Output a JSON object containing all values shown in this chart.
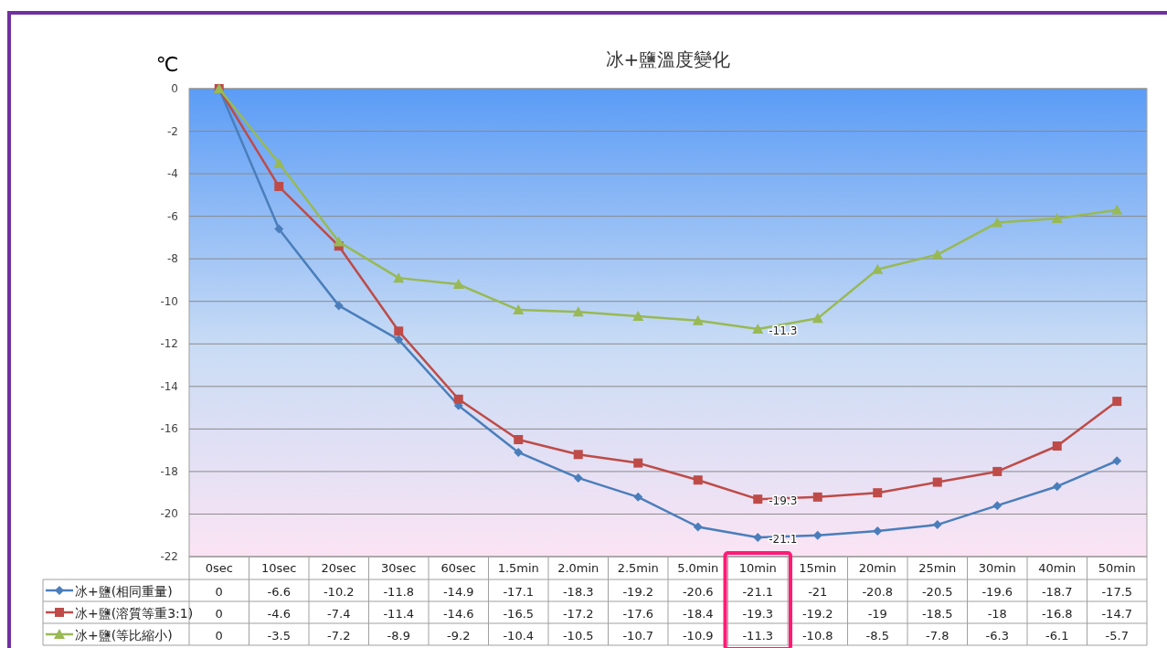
{
  "chart_data": {
    "type": "line",
    "title": "冰+鹽溫度變化",
    "ylabel": "℃",
    "categories": [
      "0sec",
      "10sec",
      "20sec",
      "30sec",
      "60sec",
      "1.5min",
      "2.0min",
      "2.5min",
      "5.0min",
      "10min",
      "15min",
      "20min",
      "25min",
      "30min",
      "40min",
      "50min"
    ],
    "series": [
      {
        "name": "冰+鹽(相同重量)",
        "color": "#4a7ebb",
        "marker": "diamond",
        "values": [
          0,
          -6.6,
          -10.2,
          -11.8,
          -14.9,
          -17.1,
          -18.3,
          -19.2,
          -20.6,
          -21.1,
          -21,
          -20.8,
          -20.5,
          -19.6,
          -18.7,
          -17.5
        ]
      },
      {
        "name": "冰+鹽(溶質等重3:1)",
        "color": "#be4b48",
        "marker": "square",
        "values": [
          0,
          -4.6,
          -7.4,
          -11.4,
          -14.6,
          -16.5,
          -17.2,
          -17.6,
          -18.4,
          -19.3,
          -19.2,
          -19,
          -18.5,
          -18,
          -16.8,
          -14.7
        ]
      },
      {
        "name": "冰+鹽(等比縮小)",
        "color": "#98b954",
        "marker": "triangle",
        "values": [
          0,
          -3.5,
          -7.2,
          -8.9,
          -9.2,
          -10.4,
          -10.5,
          -10.7,
          -10.9,
          -11.3,
          -10.8,
          -8.5,
          -7.8,
          -6.3,
          -6.1,
          -5.7
        ]
      }
    ],
    "ylim": [
      -22,
      0
    ],
    "yticks": [
      -22,
      -20,
      -18,
      -16,
      -14,
      -12,
      -10,
      -8,
      -6,
      -4,
      -2,
      0
    ],
    "grid": "y",
    "legend": "bottom",
    "data_labels": true,
    "line_style": "solid",
    "annotations": [
      {
        "text": "-11.3",
        "x": "10min",
        "y": -11.3
      },
      {
        "text": "-19.3",
        "x": "10min",
        "y": -19.3
      },
      {
        "text": "-21.1",
        "x": "10min",
        "y": -21.1
      }
    ]
  }
}
